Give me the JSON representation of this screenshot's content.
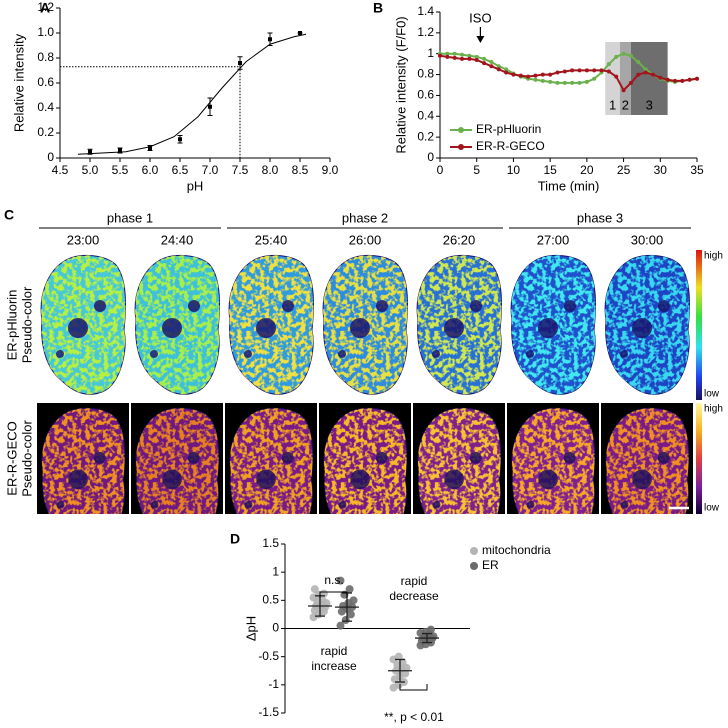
{
  "chart_data": [
    {
      "type": "errorbar",
      "panel": "A",
      "xlabel": "pH",
      "ylabel": "Relative intensity",
      "x": [
        5.0,
        5.5,
        6.0,
        6.5,
        7.0,
        7.5,
        8.0,
        8.5
      ],
      "values": [
        0.05,
        0.06,
        0.08,
        0.15,
        0.41,
        0.76,
        0.95,
        1.0
      ],
      "errors": [
        0.02,
        0.02,
        0.02,
        0.03,
        0.07,
        0.05,
        0.05,
        0.0
      ],
      "fit": {
        "x": [
          4.8,
          5.2,
          5.6,
          6.0,
          6.4,
          6.8,
          7.2,
          7.6,
          8.0,
          8.4,
          8.6
        ],
        "values": [
          0.03,
          0.04,
          0.05,
          0.09,
          0.17,
          0.33,
          0.56,
          0.77,
          0.91,
          0.97,
          0.99
        ]
      },
      "reference": {
        "x": 7.5,
        "y": 0.73
      },
      "color": "#000000",
      "xlim": [
        4.5,
        9.0
      ],
      "xticks": [
        4.5,
        {
          "value": 5,
          "label": "5.0"
        },
        5.5,
        {
          "value": 6,
          "label": "6.0"
        },
        6.5,
        {
          "value": 7,
          "label": "7.0"
        },
        7.5,
        {
          "value": 8,
          "label": "8.0"
        },
        8.5,
        {
          "value": 9,
          "label": "9.0"
        }
      ],
      "ylim": [
        0,
        1.2
      ],
      "yticks": [
        0,
        0.2,
        0.4,
        0.6,
        0.8,
        {
          "value": 1,
          "label": "1.0"
        },
        1.2
      ]
    },
    {
      "type": "line",
      "panel": "B",
      "xlabel": "Time (min)",
      "ylabel": "Relative intensity (F/F0)",
      "x": [
        0,
        1,
        2,
        3,
        4,
        5,
        6,
        7,
        8,
        9,
        10,
        11,
        12,
        13,
        14,
        15,
        16,
        17,
        18,
        19,
        20,
        21,
        22,
        23,
        24,
        25,
        26,
        27,
        28,
        29,
        30,
        31,
        32,
        33,
        34,
        35
      ],
      "series": [
        {
          "name": "ER-pHluorin",
          "color": "#6ab04c",
          "values": [
            1.0,
            1.0,
            1.0,
            0.99,
            0.98,
            0.97,
            0.95,
            0.92,
            0.88,
            0.85,
            0.81,
            0.78,
            0.76,
            0.75,
            0.74,
            0.73,
            0.72,
            0.72,
            0.72,
            0.72,
            0.73,
            0.76,
            0.82,
            0.9,
            0.97,
            1.0,
            0.98,
            0.92,
            0.85,
            0.8,
            0.76,
            0.74,
            0.73,
            0.74,
            0.75,
            0.76
          ]
        },
        {
          "name": "ER-R-GECO",
          "color": "#a3141c",
          "values": [
            0.98,
            0.97,
            0.96,
            0.95,
            0.95,
            0.94,
            0.91,
            0.88,
            0.85,
            0.82,
            0.8,
            0.79,
            0.78,
            0.79,
            0.8,
            0.8,
            0.82,
            0.83,
            0.84,
            0.84,
            0.84,
            0.84,
            0.84,
            0.83,
            0.78,
            0.65,
            0.72,
            0.8,
            0.82,
            0.8,
            0.77,
            0.75,
            0.74,
            0.74,
            0.75,
            0.76
          ]
        }
      ],
      "phases": [
        {
          "label": "1",
          "start": 22.5,
          "end": 24.5,
          "color": "#d4d4d4"
        },
        {
          "label": "2",
          "start": 24.5,
          "end": 26,
          "color": "#a6a6a6"
        },
        {
          "label": "3",
          "start": 26,
          "end": 31,
          "color": "#6e6e6e"
        }
      ],
      "annotation": {
        "text": "ISO",
        "x": 5.5
      },
      "xlim": [
        0,
        35
      ],
      "xticks": [
        0,
        5,
        10,
        15,
        20,
        25,
        30,
        35
      ],
      "ylim": [
        0,
        1.4
      ],
      "yticks": [
        0,
        0.2,
        0.4,
        0.6,
        0.8,
        1,
        1.2,
        1.4
      ]
    },
    {
      "type": "dot",
      "panel": "D",
      "ylabel": "ΔpH",
      "categories": [
        [
          "rapid",
          "increase"
        ],
        [
          "rapid",
          "decrease"
        ]
      ],
      "series": [
        {
          "name": "mitochondria",
          "color": "#b4b4b4",
          "values": [
            [
              0.2,
              0.25,
              0.3,
              0.32,
              0.35,
              0.38,
              0.4,
              0.42,
              0.45,
              0.48,
              0.5,
              0.55,
              0.6,
              0.62,
              0.7
            ],
            [
              -1.05,
              -1.0,
              -0.95,
              -0.9,
              -0.85,
              -0.8,
              -0.75,
              -0.72,
              -0.7,
              -0.65,
              -0.6,
              -0.55,
              -0.5
            ]
          ],
          "mean": [
            0.4,
            -0.75
          ],
          "sd": [
            0.18,
            0.2
          ]
        },
        {
          "name": "ER",
          "color": "#6a6a6a",
          "values": [
            [
              0.05,
              0.15,
              0.25,
              0.3,
              0.35,
              0.38,
              0.4,
              0.45,
              0.5,
              0.6,
              0.7,
              0.85
            ],
            [
              -0.3,
              -0.28,
              -0.25,
              -0.22,
              -0.2,
              -0.18,
              -0.17,
              -0.15,
              -0.14,
              -0.12,
              -0.1,
              -0.08,
              -0.06,
              -0.02
            ]
          ],
          "mean": [
            0.38,
            -0.17
          ],
          "sd": [
            0.25,
            0.08
          ]
        }
      ],
      "significance": [
        "n.s.",
        "**, p < 0.01"
      ],
      "ylim": [
        -1.5,
        1.5
      ],
      "yticks": [
        -1.5,
        -1,
        -0.5,
        0,
        0.5,
        1,
        1.5
      ]
    }
  ],
  "panel_c": {
    "label": "C",
    "phases": [
      {
        "name": "phase 1",
        "times": [
          "23:00",
          "24:40"
        ]
      },
      {
        "name": "phase 2",
        "times": [
          "25:40",
          "26:00",
          "26:20"
        ]
      },
      {
        "name": "phase 3",
        "times": [
          "27:00",
          "30:00"
        ]
      }
    ],
    "rows": [
      {
        "lines": [
          "ER-pHluorin",
          "Pseudo-color"
        ],
        "high": "high",
        "low": "low"
      },
      {
        "lines": [
          "ER-R-GECO",
          "Pseudo-color"
        ],
        "high": "high",
        "low": "low"
      }
    ]
  }
}
